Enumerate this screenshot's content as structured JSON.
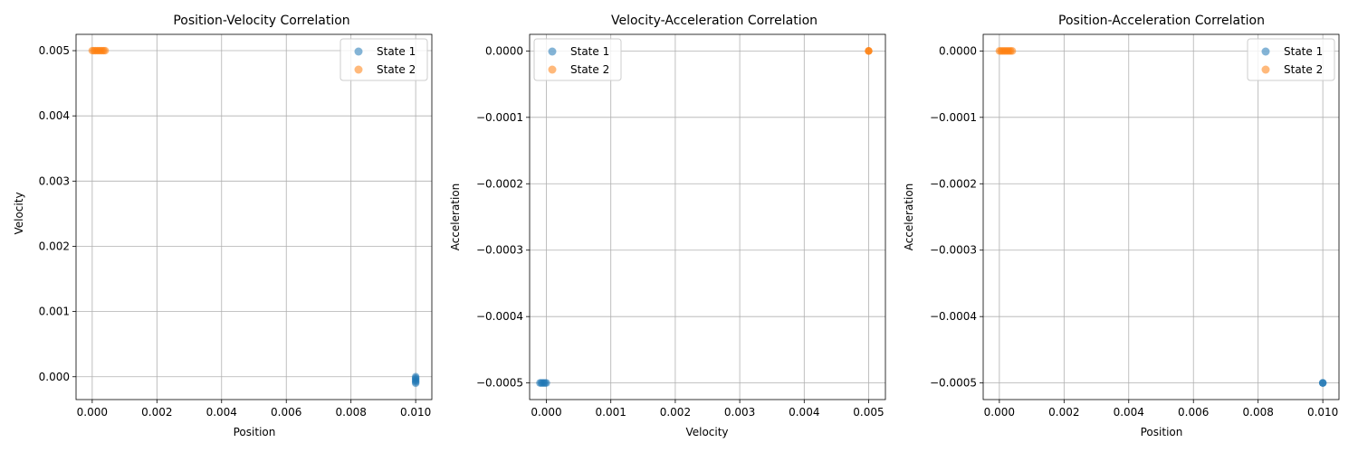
{
  "chart_data": [
    {
      "type": "scatter",
      "title": "Position-Velocity Correlation",
      "xlabel": "Position",
      "ylabel": "Velocity",
      "xlim": [
        -0.0005,
        0.0105
      ],
      "ylim": [
        -0.00035,
        0.00525
      ],
      "xticks": [
        0.0,
        0.002,
        0.004,
        0.006,
        0.008,
        0.01
      ],
      "xtick_labels": [
        "0.000",
        "0.002",
        "0.004",
        "0.006",
        "0.008",
        "0.010"
      ],
      "yticks": [
        0.0,
        0.001,
        0.002,
        0.003,
        0.004,
        0.005
      ],
      "ytick_labels": [
        "0.000",
        "0.001",
        "0.002",
        "0.003",
        "0.004",
        "0.005"
      ],
      "grid": true,
      "legend": "upper right",
      "series": [
        {
          "name": "State 1",
          "color": "#1f77b4",
          "points": [
            [
              0.01,
              0.0
            ],
            [
              0.01,
              -2e-05
            ],
            [
              0.01,
              -4e-05
            ],
            [
              0.01,
              -6e-05
            ],
            [
              0.01,
              -8e-05
            ],
            [
              0.01,
              -0.0001
            ]
          ]
        },
        {
          "name": "State 2",
          "color": "#ff7f0e",
          "points": [
            [
              0.0,
              0.005
            ],
            [
              5e-05,
              0.005
            ],
            [
              0.0001,
              0.005
            ],
            [
              0.00015,
              0.005
            ],
            [
              0.0002,
              0.005
            ],
            [
              0.00025,
              0.005
            ],
            [
              0.0003,
              0.005
            ],
            [
              0.00035,
              0.005
            ],
            [
              0.0004,
              0.005
            ]
          ]
        }
      ]
    },
    {
      "type": "scatter",
      "title": "Velocity-Acceleration Correlation",
      "xlabel": "Velocity",
      "ylabel": "Acceleration",
      "xlim": [
        -0.00026,
        0.00526
      ],
      "ylim": [
        -0.000525,
        2.5e-05
      ],
      "xticks": [
        0.0,
        0.001,
        0.002,
        0.003,
        0.004,
        0.005
      ],
      "xtick_labels": [
        "0.000",
        "0.001",
        "0.002",
        "0.003",
        "0.004",
        "0.005"
      ],
      "yticks": [
        -0.0005,
        -0.0004,
        -0.0003,
        -0.0002,
        -0.0001,
        0.0
      ],
      "ytick_labels": [
        "−0.0005",
        "−0.0004",
        "−0.0003",
        "−0.0002",
        "−0.0001",
        "0.0000"
      ],
      "grid": true,
      "legend": "upper left",
      "series": [
        {
          "name": "State 1",
          "color": "#1f77b4",
          "points": [
            [
              -0.0001,
              -0.0005
            ],
            [
              -8e-05,
              -0.0005
            ],
            [
              -6e-05,
              -0.0005
            ],
            [
              -4e-05,
              -0.0005
            ],
            [
              -2e-05,
              -0.0005
            ],
            [
              0.0,
              -0.0005
            ]
          ]
        },
        {
          "name": "State 2",
          "color": "#ff7f0e",
          "points": [
            [
              0.005,
              0.0
            ],
            [
              0.005,
              0.0
            ],
            [
              0.005,
              0.0
            ]
          ]
        }
      ]
    },
    {
      "type": "scatter",
      "title": "Position-Acceleration Correlation",
      "xlabel": "Position",
      "ylabel": "Acceleration",
      "xlim": [
        -0.0005,
        0.0105
      ],
      "ylim": [
        -0.000525,
        2.5e-05
      ],
      "xticks": [
        0.0,
        0.002,
        0.004,
        0.006,
        0.008,
        0.01
      ],
      "xtick_labels": [
        "0.000",
        "0.002",
        "0.004",
        "0.006",
        "0.008",
        "0.010"
      ],
      "yticks": [
        -0.0005,
        -0.0004,
        -0.0003,
        -0.0002,
        -0.0001,
        0.0
      ],
      "ytick_labels": [
        "−0.0005",
        "−0.0004",
        "−0.0003",
        "−0.0002",
        "−0.0001",
        "0.0000"
      ],
      "grid": true,
      "legend": "upper right",
      "series": [
        {
          "name": "State 1",
          "color": "#1f77b4",
          "points": [
            [
              0.01,
              -0.0005
            ],
            [
              0.01,
              -0.0005
            ],
            [
              0.01,
              -0.0005
            ]
          ]
        },
        {
          "name": "State 2",
          "color": "#ff7f0e",
          "points": [
            [
              0.0,
              0.0
            ],
            [
              5e-05,
              0.0
            ],
            [
              0.0001,
              0.0
            ],
            [
              0.00015,
              0.0
            ],
            [
              0.0002,
              0.0
            ],
            [
              0.00025,
              0.0
            ],
            [
              0.0003,
              0.0
            ],
            [
              0.00035,
              0.0
            ],
            [
              0.0004,
              0.0
            ]
          ]
        }
      ]
    }
  ]
}
